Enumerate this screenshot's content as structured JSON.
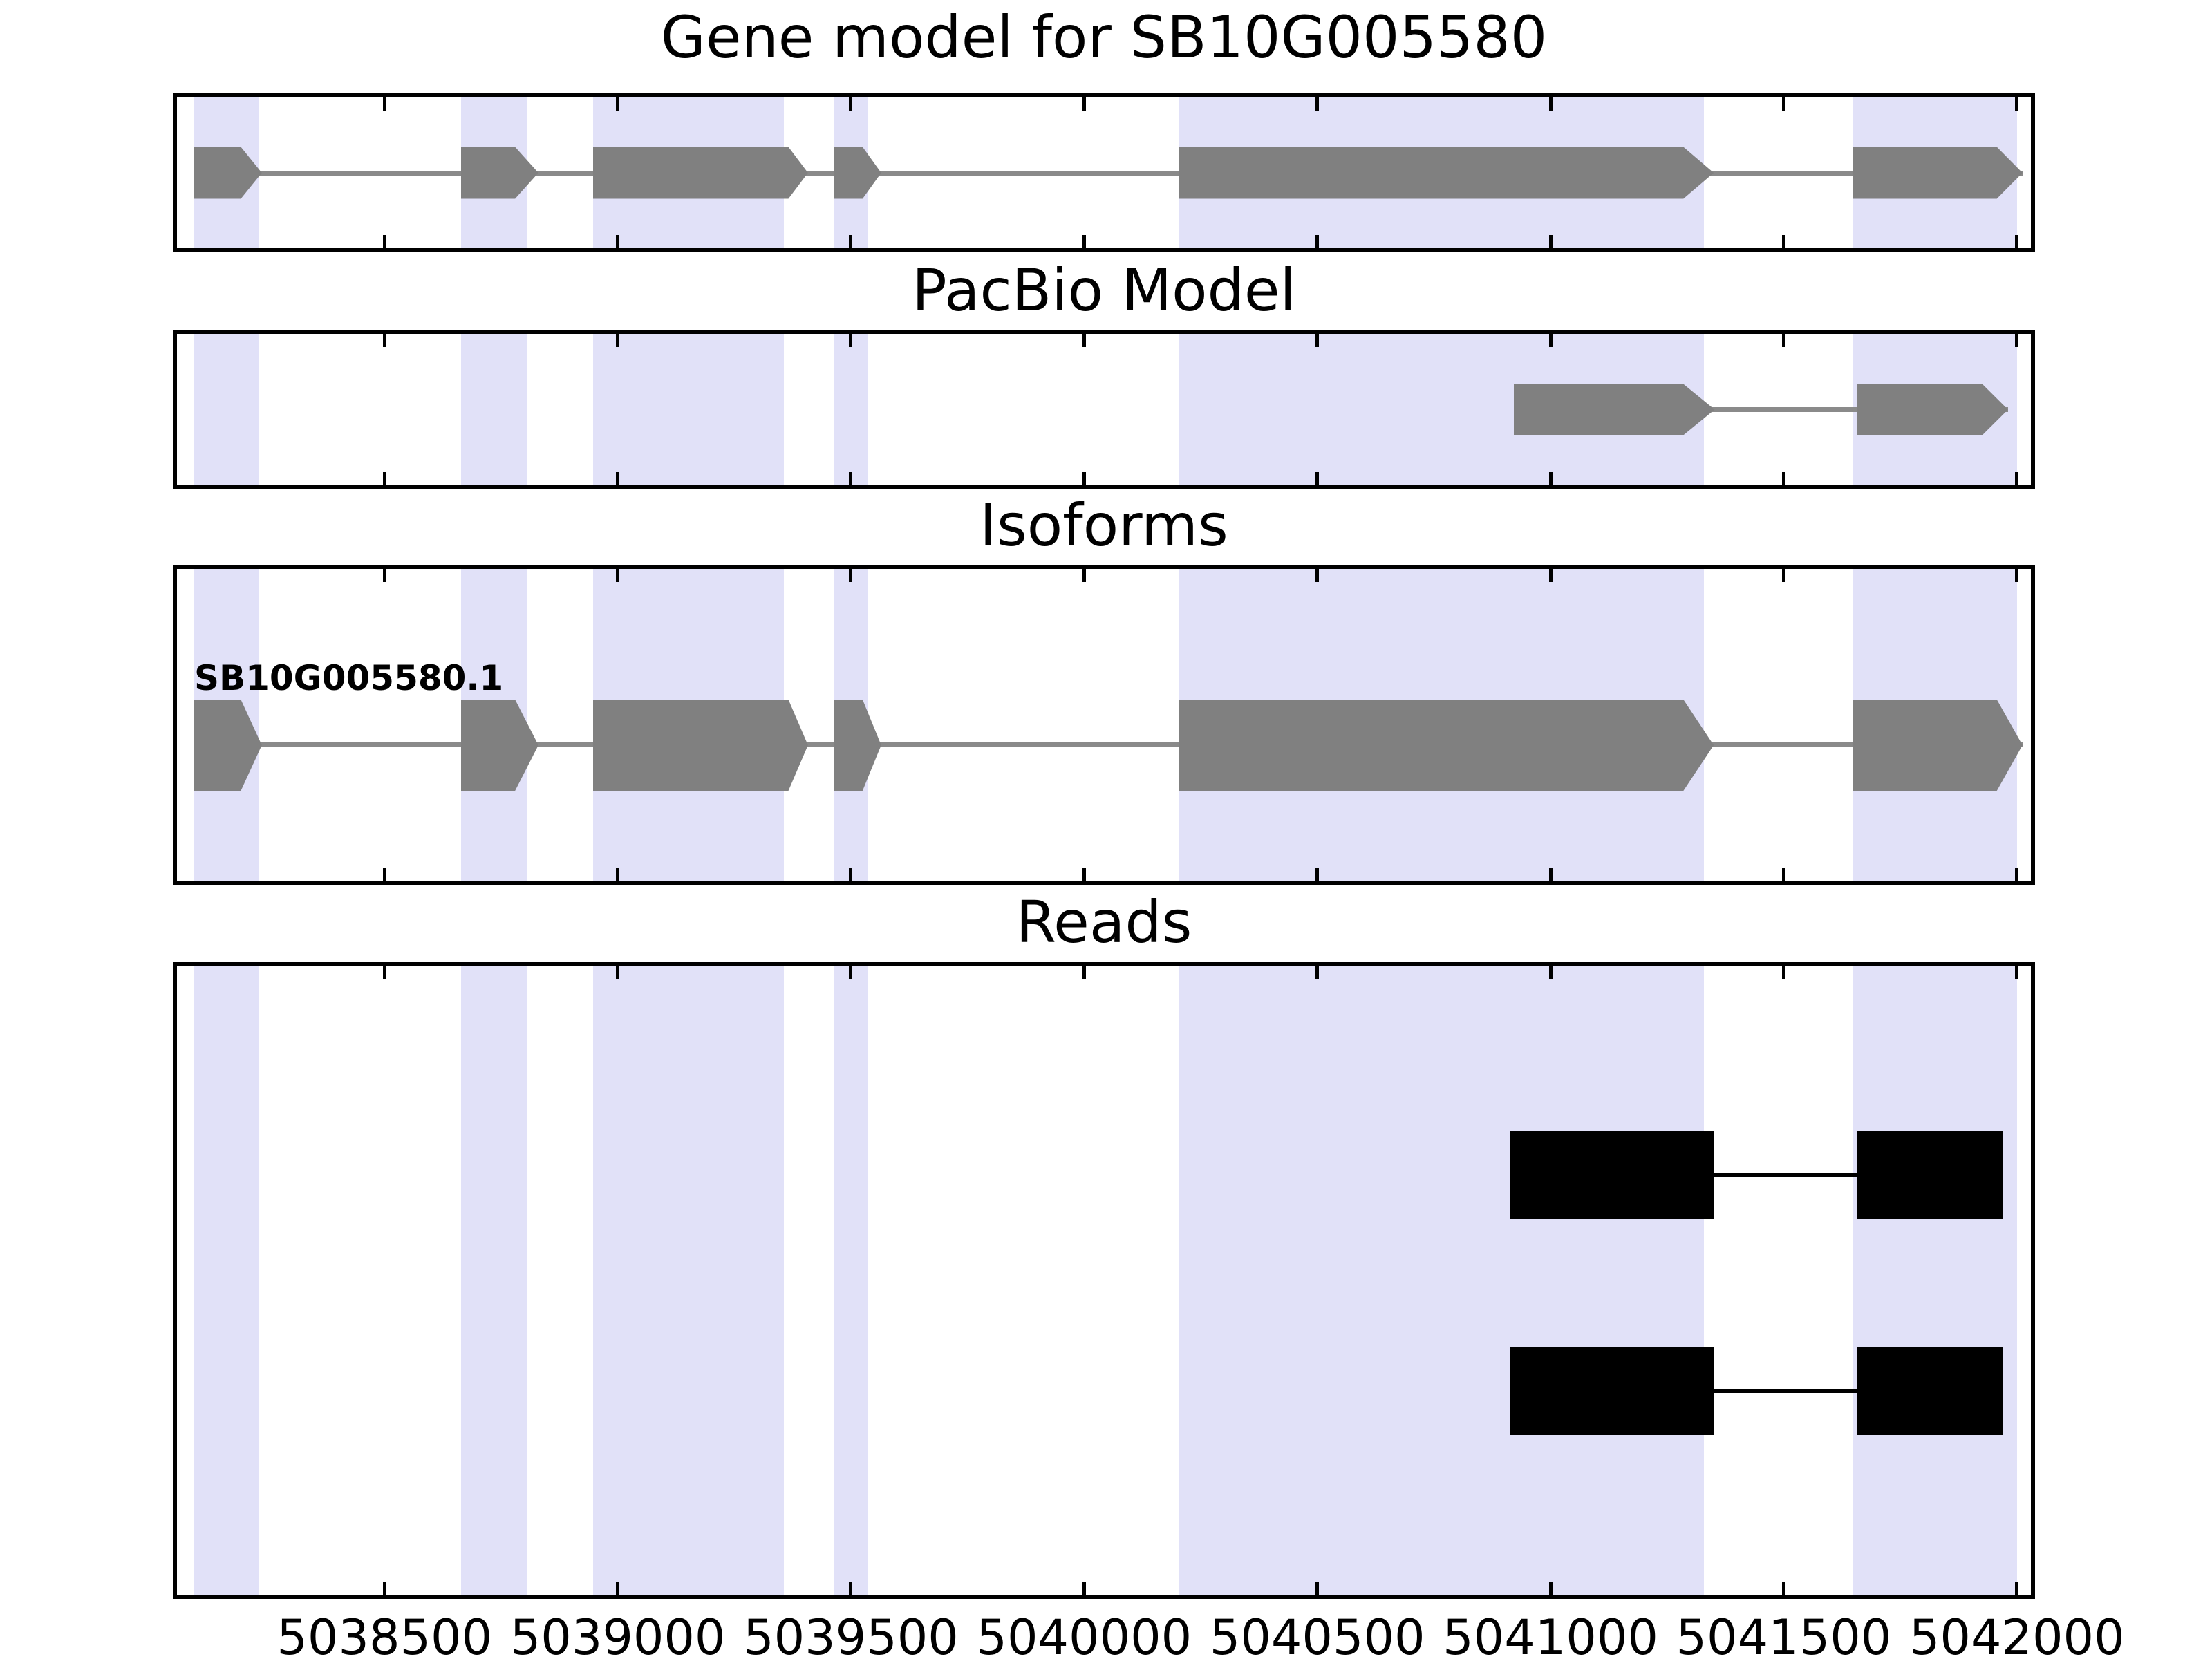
{
  "chart_data": {
    "type": "gene-structure-tracks",
    "title": "Gene model for SB10G005580",
    "gene_id": "SB10G005580",
    "x_axis": {
      "range": [
        5038055,
        5042030
      ],
      "tick_values": [
        5038500,
        5039000,
        5039500,
        5040000,
        5040500,
        5041000,
        5041500,
        5042000
      ],
      "tick_labels": [
        "5038500",
        "5039000",
        "5039500",
        "5040000",
        "5040500",
        "5041000",
        "5041500",
        "5042000"
      ]
    },
    "highlight_regions": [
      {
        "start": 5038092,
        "end": 5038230
      },
      {
        "start": 5038664,
        "end": 5038805
      },
      {
        "start": 5038947,
        "end": 5039357
      },
      {
        "start": 5039463,
        "end": 5039535
      },
      {
        "start": 5040203,
        "end": 5041329
      },
      {
        "start": 5041649,
        "end": 5042000
      }
    ],
    "panels": [
      {
        "title": "Gene model for SB10G005580",
        "type": "transcripts",
        "transcripts": [
          {
            "label": "",
            "strand": "+",
            "exons": [
              {
                "start": 5038092,
                "end": 5038237,
                "head": 45
              },
              {
                "start": 5038664,
                "end": 5038830,
                "head": 50
              },
              {
                "start": 5038947,
                "end": 5039408,
                "head": 42
              },
              {
                "start": 5039463,
                "end": 5039565,
                "head": 40
              },
              {
                "start": 5040203,
                "end": 5041350,
                "head": 65
              },
              {
                "start": 5041649,
                "end": 5042012,
                "head": 55
              }
            ]
          }
        ]
      },
      {
        "title": "PacBio Model",
        "type": "transcripts",
        "transcripts": [
          {
            "label": "",
            "strand": "+",
            "exons": [
              {
                "start": 5040921,
                "end": 5041352,
                "head": 68
              },
              {
                "start": 5041657,
                "end": 5041981,
                "head": 56
              }
            ]
          }
        ]
      },
      {
        "title": "Isoforms",
        "type": "transcripts",
        "transcripts": [
          {
            "label": "SB10G005580.1",
            "strand": "+",
            "exons": [
              {
                "start": 5038092,
                "end": 5038237,
                "head": 45
              },
              {
                "start": 5038664,
                "end": 5038830,
                "head": 50
              },
              {
                "start": 5038947,
                "end": 5039408,
                "head": 42
              },
              {
                "start": 5039463,
                "end": 5039565,
                "head": 40
              },
              {
                "start": 5040203,
                "end": 5041350,
                "head": 65
              },
              {
                "start": 5041649,
                "end": 5042012,
                "head": 55
              }
            ]
          }
        ]
      },
      {
        "title": "Reads",
        "type": "reads",
        "reads": [
          {
            "blocks": [
              {
                "start": 5040912,
                "end": 5041349
              },
              {
                "start": 5041657,
                "end": 5041971
              }
            ]
          },
          {
            "blocks": [
              {
                "start": 5040912,
                "end": 5041349
              },
              {
                "start": 5041657,
                "end": 5041971
              }
            ]
          }
        ]
      }
    ],
    "colors": {
      "background": "#ffffff",
      "highlight_band": "#e1e1f8",
      "exon_fill": "#808080",
      "intron_line": "#8a8a8a",
      "read_fill": "#000000",
      "panel_border": "#000000",
      "text": "#000000"
    },
    "legend_position": "none",
    "grid": false
  }
}
